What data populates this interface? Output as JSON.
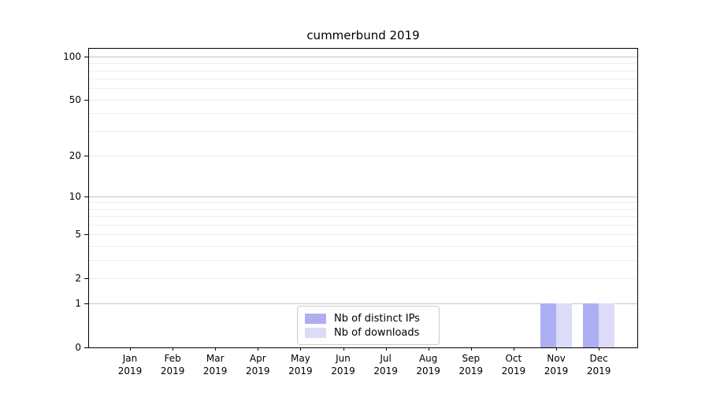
{
  "page": {
    "background": "#ffffff"
  },
  "chart_data": {
    "type": "bar",
    "title": "cummerbund 2019",
    "categories": [
      [
        "Jan",
        "2019"
      ],
      [
        "Feb",
        "2019"
      ],
      [
        "Mar",
        "2019"
      ],
      [
        "Apr",
        "2019"
      ],
      [
        "May",
        "2019"
      ],
      [
        "Jun",
        "2019"
      ],
      [
        "Jul",
        "2019"
      ],
      [
        "Aug",
        "2019"
      ],
      [
        "Sep",
        "2019"
      ],
      [
        "Oct",
        "2019"
      ],
      [
        "Nov",
        "2019"
      ],
      [
        "Dec",
        "2019"
      ]
    ],
    "series": [
      {
        "name": "Nb of distinct IPs",
        "color": "#aeaef2",
        "values": [
          0,
          0,
          0,
          0,
          0,
          0,
          0,
          0,
          0,
          0,
          1,
          1
        ]
      },
      {
        "name": "Nb of downloads",
        "color": "#dcdcf8",
        "values": [
          0,
          0,
          0,
          0,
          0,
          0,
          0,
          0,
          0,
          0,
          1,
          1
        ]
      }
    ],
    "xlabel": "",
    "ylabel": "",
    "yscale": "log1p",
    "ylim": [
      0,
      101
    ],
    "yticks": [
      0,
      1,
      2,
      5,
      10,
      20,
      50,
      100
    ],
    "major_gridlines": [
      1,
      10,
      100
    ],
    "minor_gridlines": [
      2,
      3,
      4,
      5,
      6,
      7,
      8,
      9,
      20,
      30,
      40,
      50,
      60,
      70,
      80,
      90
    ],
    "grid": "on",
    "grid_color_major": "#c6c6c6",
    "grid_color_minor": "#ededed",
    "legend_position": "lower center",
    "colors": {
      "axes_spine": "#000000",
      "legend_border": "#cbcbcb",
      "text": "#000000"
    }
  }
}
